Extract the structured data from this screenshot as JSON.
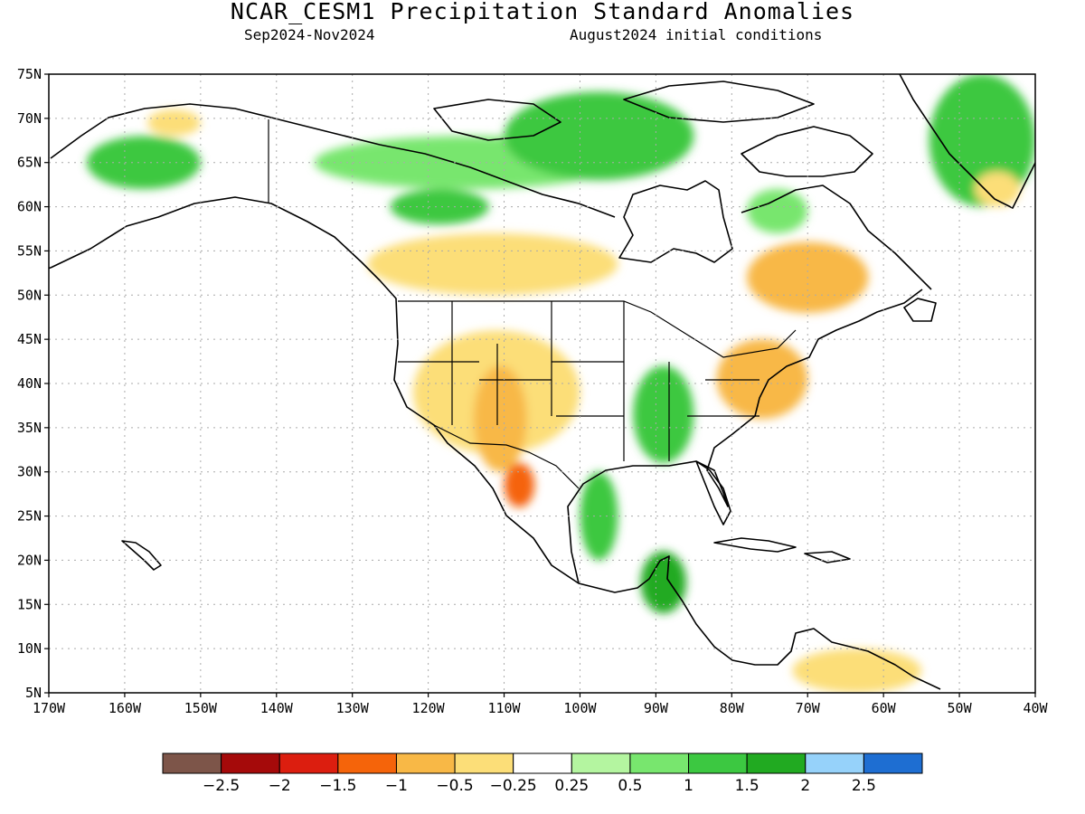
{
  "title": "NCAR_CESM1 Precipitation Standard Anomalies",
  "subtitle_left": "Sep2024-Nov2024",
  "subtitle_right": "August2024 initial conditions",
  "map": {
    "lon_range": [
      -170,
      -40
    ],
    "lat_range": [
      5,
      75
    ],
    "lon_ticks": [
      "170W",
      "160W",
      "150W",
      "140W",
      "130W",
      "120W",
      "110W",
      "100W",
      "90W",
      "80W",
      "70W",
      "60W",
      "50W",
      "40W"
    ],
    "lat_ticks": [
      "5N",
      "10N",
      "15N",
      "20N",
      "25N",
      "30N",
      "35N",
      "40N",
      "45N",
      "50N",
      "55N",
      "60N",
      "65N",
      "70N",
      "75N"
    ],
    "grid": "dotted",
    "anomaly_regions": [
      {
        "name": "alaska-west",
        "value": 1.0,
        "lon": [
          -165,
          -150
        ],
        "lat": [
          62,
          68
        ]
      },
      {
        "name": "alaska-north-dry",
        "value": -0.5,
        "lon": [
          -157,
          -150
        ],
        "lat": [
          68,
          71
        ]
      },
      {
        "name": "yukon-canada-north",
        "value": 0.5,
        "lon": [
          -135,
          -95
        ],
        "lat": [
          62,
          68
        ]
      },
      {
        "name": "central-canada-wet",
        "value": 1.0,
        "lon": [
          -125,
          -112
        ],
        "lat": [
          58,
          62
        ]
      },
      {
        "name": "canadian-arctic-islands",
        "value": 1.0,
        "lon": [
          -110,
          -85
        ],
        "lat": [
          63,
          73
        ]
      },
      {
        "name": "western-canada-dry",
        "value": -0.5,
        "lon": [
          -128,
          -95
        ],
        "lat": [
          50,
          57
        ]
      },
      {
        "name": "western-us-dry",
        "value": -0.5,
        "lon": [
          -122,
          -100
        ],
        "lat": [
          32,
          46
        ]
      },
      {
        "name": "southwest-dry",
        "value": -1.0,
        "lon": [
          -114,
          -107
        ],
        "lat": [
          30,
          42
        ]
      },
      {
        "name": "northern-mexico-dry",
        "value": -1.5,
        "lon": [
          -110,
          -106
        ],
        "lat": [
          26,
          31
        ]
      },
      {
        "name": "mississippi-valley-wet",
        "value": 1.0,
        "lon": [
          -93,
          -85
        ],
        "lat": [
          31,
          42
        ]
      },
      {
        "name": "texas-gulf-wet",
        "value": 1.0,
        "lon": [
          -100,
          -95
        ],
        "lat": [
          20,
          30
        ]
      },
      {
        "name": "central-america-wet",
        "value": 1.5,
        "lon": [
          -92,
          -86
        ],
        "lat": [
          14,
          21
        ]
      },
      {
        "name": "quebec-dry",
        "value": -1.0,
        "lon": [
          -78,
          -62
        ],
        "lat": [
          48,
          56
        ]
      },
      {
        "name": "northeast-us-dry",
        "value": -1.0,
        "lon": [
          -82,
          -70
        ],
        "lat": [
          36,
          45
        ]
      },
      {
        "name": "hudson-bay-east-wet",
        "value": 0.5,
        "lon": [
          -78,
          -70
        ],
        "lat": [
          57,
          62
        ]
      },
      {
        "name": "south-america-north-dry",
        "value": -0.5,
        "lon": [
          -72,
          -55
        ],
        "lat": [
          5,
          10
        ]
      },
      {
        "name": "greenland-wet",
        "value": 1.0,
        "lon": [
          -54,
          -40
        ],
        "lat": [
          60,
          75
        ]
      },
      {
        "name": "greenland-south-dry",
        "value": -0.5,
        "lon": [
          -48,
          -42
        ],
        "lat": [
          60,
          64
        ]
      }
    ]
  },
  "colorbar": {
    "colors": [
      "#7d5549",
      "#a50a0a",
      "#dc1e0f",
      "#f5640a",
      "#f8b846",
      "#fcde78",
      "#ffffff",
      "#b4f5a0",
      "#78e66e",
      "#3cc841",
      "#21aa21",
      "#96d2fa",
      "#1e6ed2"
    ],
    "labels": [
      "−2.5",
      "−2",
      "−1.5",
      "−1",
      "−0.5",
      "−0.25",
      "0.25",
      "0.5",
      "1",
      "1.5",
      "2",
      "2.5"
    ]
  }
}
